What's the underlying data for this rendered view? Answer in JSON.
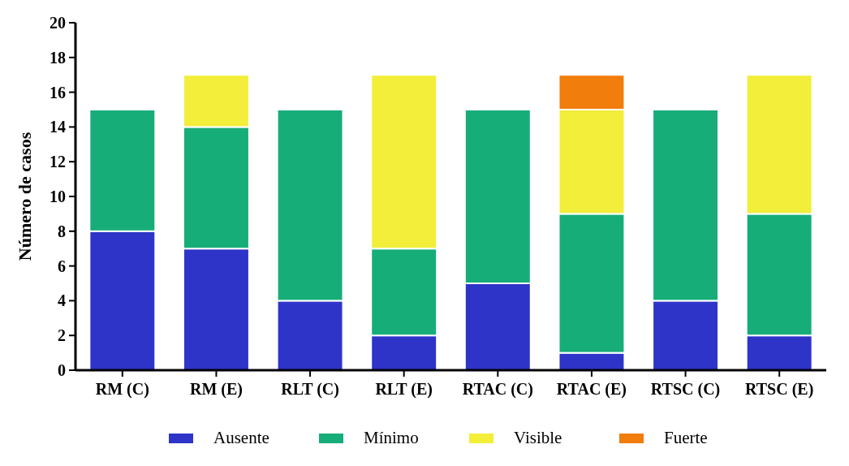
{
  "chart_data": {
    "type": "bar",
    "stacked": true,
    "ylabel": "Número  de casos",
    "categories": [
      "RM (C)",
      "RM (E)",
      "RLT (C)",
      "RLT (E)",
      "RTAC (C)",
      "RTAC (E)",
      "RTSC (C)",
      "RTSC (E)"
    ],
    "series": [
      {
        "name": "Ausente",
        "color": "#2e34c8",
        "values": [
          8,
          7,
          4,
          2,
          5,
          1,
          4,
          2
        ]
      },
      {
        "name": "Mínimo",
        "color": "#17ad78",
        "values": [
          7,
          7,
          11,
          5,
          10,
          8,
          11,
          7
        ]
      },
      {
        "name": "Visible",
        "color": "#f2ee3a",
        "values": [
          0,
          3,
          0,
          10,
          0,
          6,
          0,
          8
        ]
      },
      {
        "name": "Fuerte",
        "color": "#f07d0c",
        "values": [
          0,
          0,
          0,
          0,
          0,
          2,
          0,
          0
        ]
      }
    ],
    "ylim": [
      0,
      20
    ],
    "yticks": [
      0,
      2,
      4,
      6,
      8,
      10,
      12,
      14,
      16,
      18,
      20
    ],
    "grid": false,
    "legend": "bottom"
  }
}
